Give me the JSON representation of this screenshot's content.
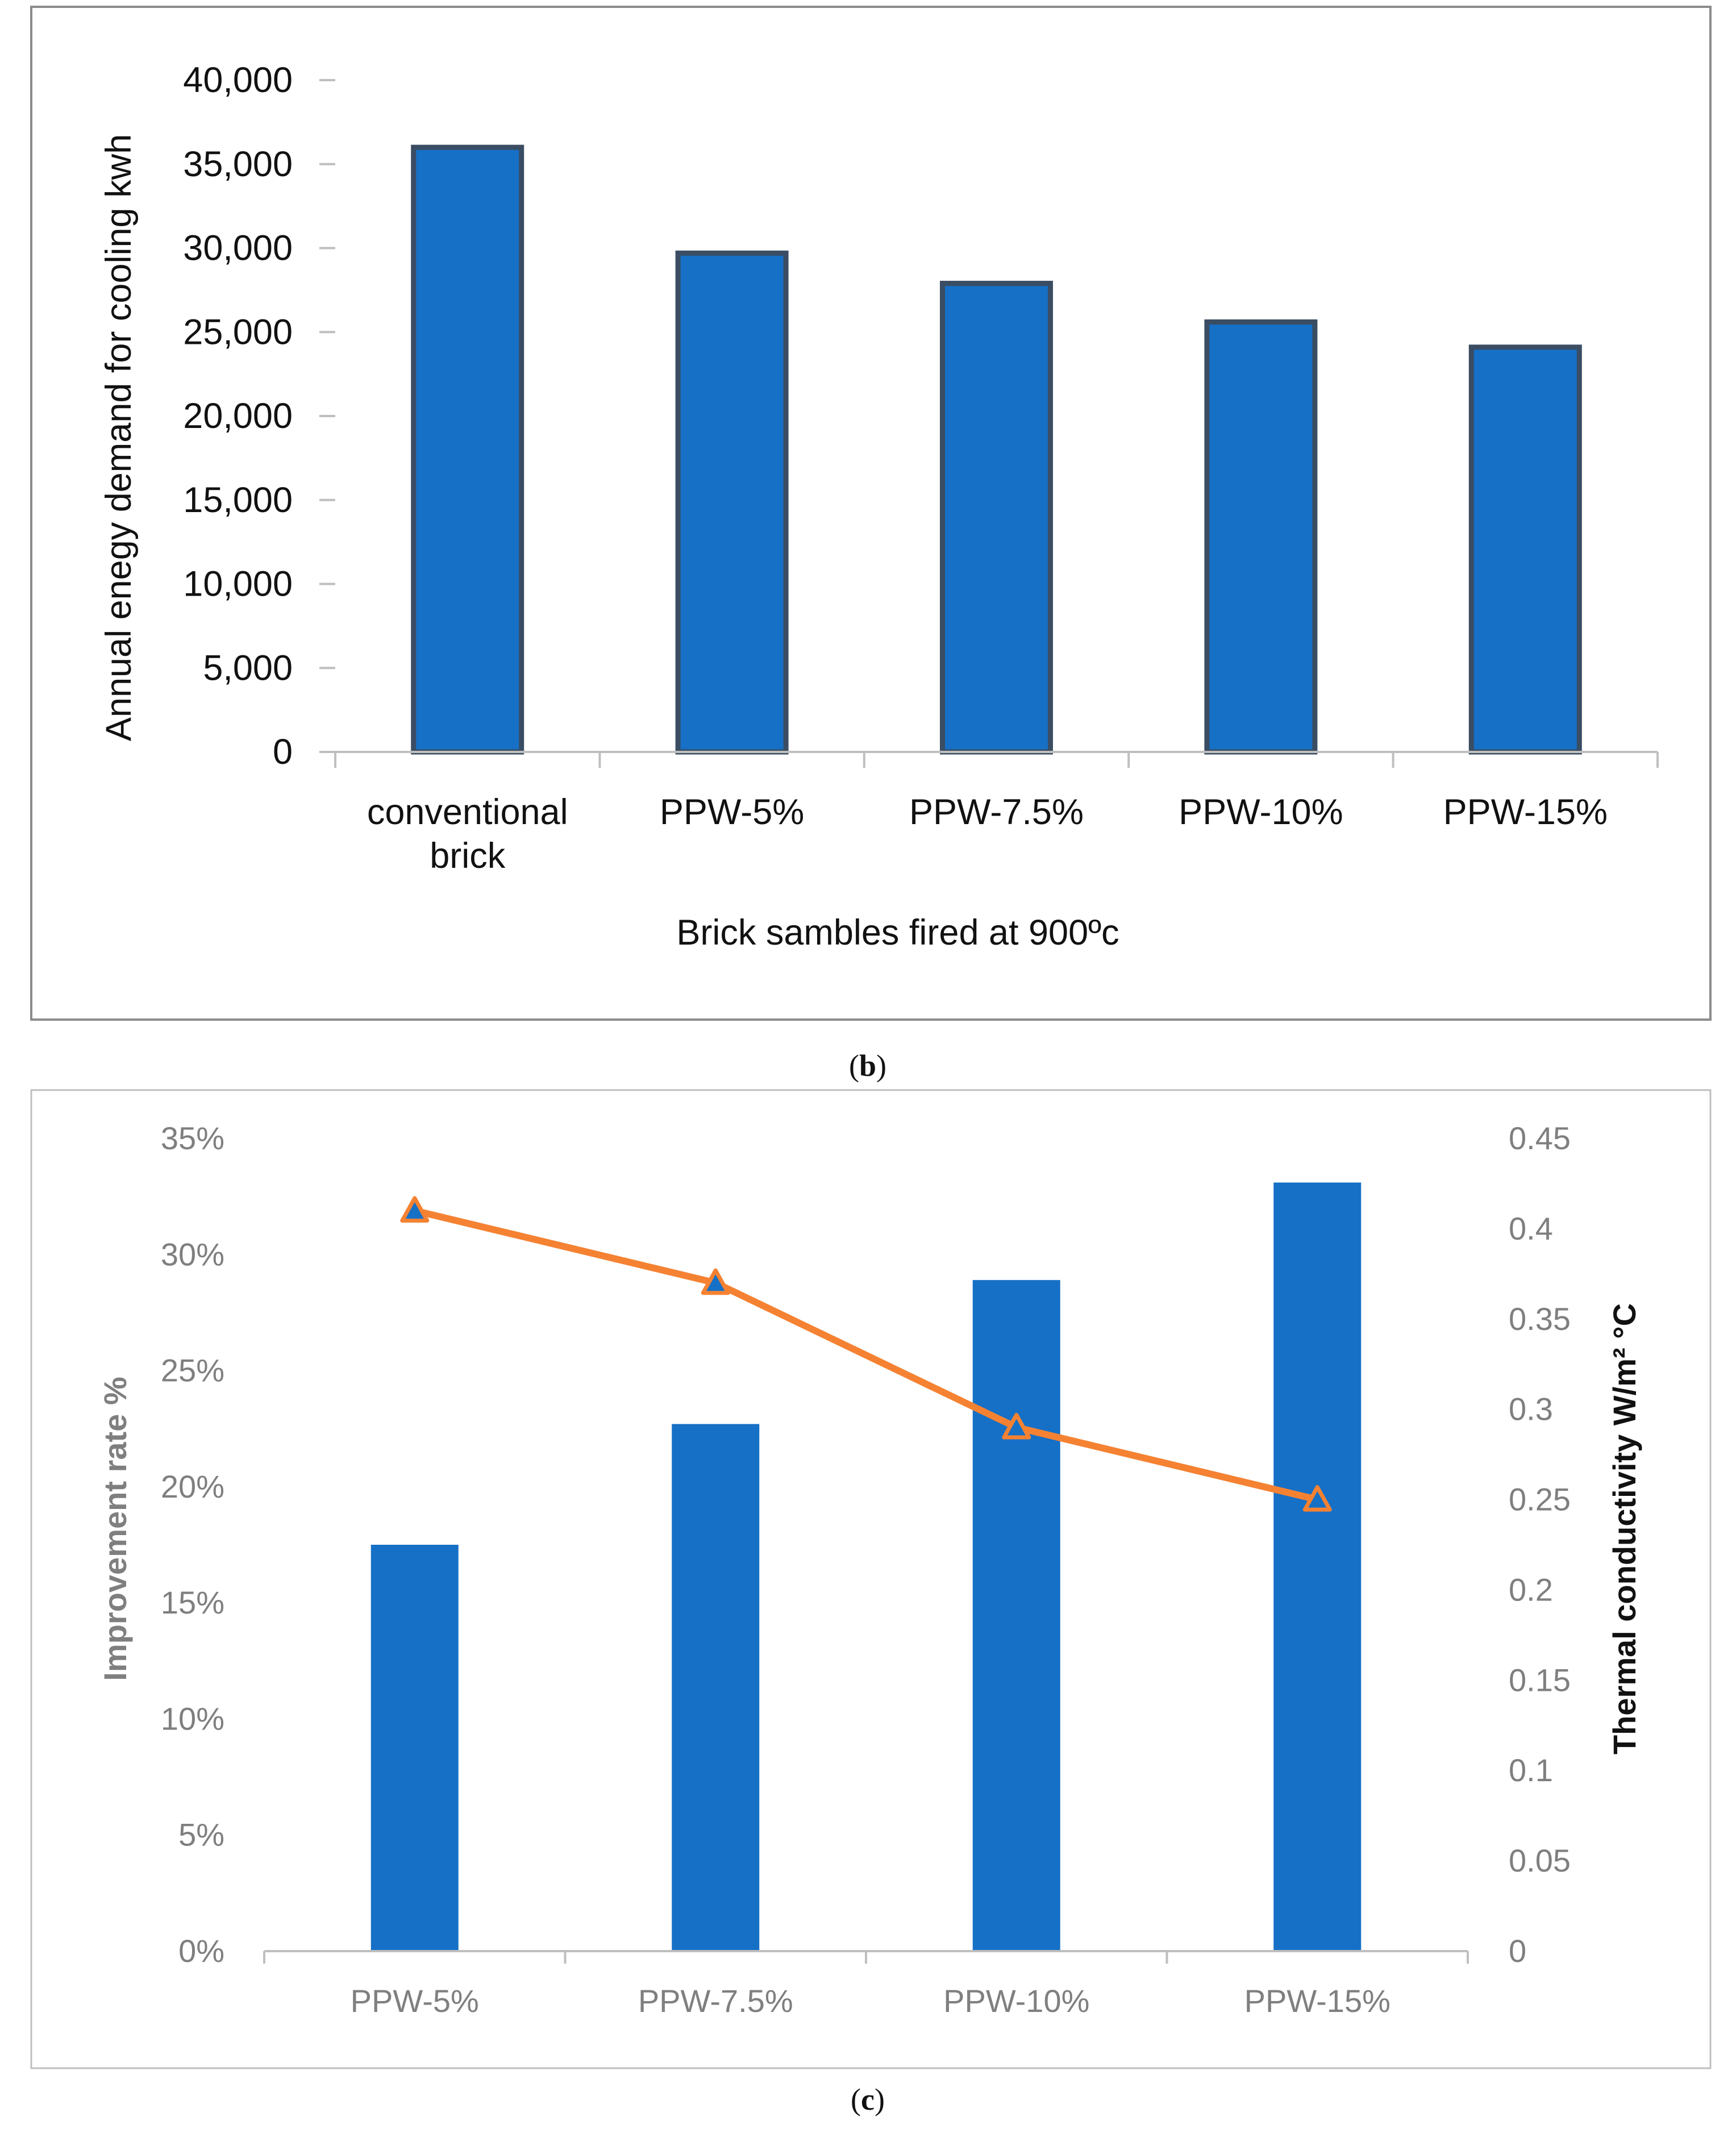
{
  "colors": {
    "bar_fill": "#1670C6",
    "bar_border": "#3A4D63",
    "line": "#F58232",
    "frame": "#8C8C8C",
    "axis_line": "#BFBFBF",
    "dark_text": "#111111",
    "gray_text": "#7F7F7F"
  },
  "chart_data": [
    {
      "panel": "(b)",
      "type": "bar",
      "title": "",
      "xlabel": "Brick sambles fired at 900ºc",
      "ylabel": "Annual enegy demand for cooling kwh",
      "categories": [
        [
          "conventional",
          "brick"
        ],
        [
          "PPW-5%"
        ],
        [
          "PPW-7.5%"
        ],
        [
          "PPW-10%"
        ],
        [
          "PPW-15%"
        ]
      ],
      "values": [
        36000,
        29700,
        27900,
        25600,
        24100
      ],
      "ylim": [
        0,
        40000
      ],
      "yticks": [
        "0",
        "5,000",
        "10,000",
        "15,000",
        "20,000",
        "25,000",
        "30,000",
        "35,000",
        "40,000"
      ],
      "grid": false
    },
    {
      "panel": "(c)",
      "type": "bar+line",
      "title": "",
      "categories": [
        "PPW-5%",
        "PPW-7.5%",
        "PPW-10%",
        "PPW-15%"
      ],
      "series": [
        {
          "name": "Improvement rate %",
          "type": "bar",
          "axis": "left",
          "values": [
            0.175,
            0.227,
            0.289,
            0.331
          ]
        },
        {
          "name": "Thermal conductivity",
          "type": "line",
          "axis": "right",
          "marker": "triangle",
          "values": [
            0.41,
            0.37,
            0.29,
            0.25
          ]
        }
      ],
      "ylabel_left": "Improvement rate %",
      "ylabel_right": "Thermal conductivity W/m² °C",
      "ylim_left": [
        0,
        0.35
      ],
      "ylim_right": [
        0,
        0.45
      ],
      "yticks_left": [
        "0%",
        "5%",
        "10%",
        "15%",
        "20%",
        "25%",
        "30%",
        "35%"
      ],
      "yticks_right": [
        "0",
        "0.05",
        "0.1",
        "0.15",
        "0.2",
        "0.25",
        "0.3",
        "0.35",
        "0.4",
        "0.45"
      ],
      "grid": false
    }
  ],
  "captions": {
    "b": "b",
    "c": "c"
  }
}
